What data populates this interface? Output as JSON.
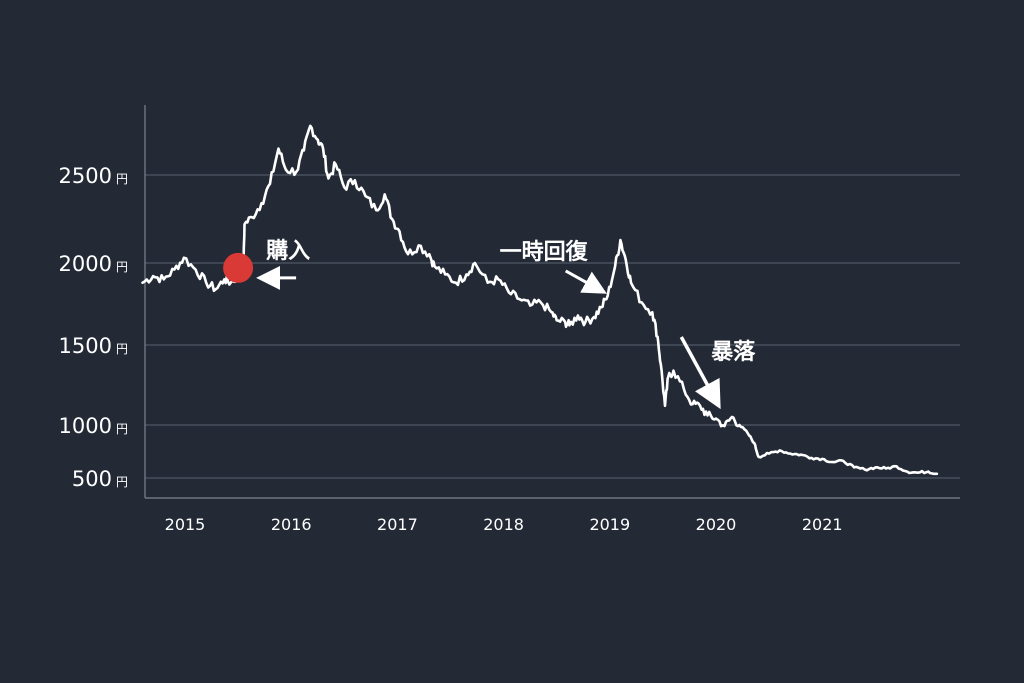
{
  "chart_data": {
    "type": "line",
    "title": "",
    "xlabel": "",
    "ylabel": "",
    "y_unit": "円",
    "xlim": [
      2014.55,
      2022.1
    ],
    "ylim": [
      380,
      2830
    ],
    "yticks": [
      500,
      1000,
      1500,
      2000,
      2500
    ],
    "ytick_labels": [
      "500",
      "1000",
      "1500",
      "2000",
      "2500"
    ],
    "xticks": [
      2015,
      2016,
      2017,
      2018,
      2019,
      2020,
      2021
    ],
    "xtick_labels": [
      "2015",
      "2016",
      "2017",
      "2018",
      "2019",
      "2020",
      "2021"
    ],
    "grid": true,
    "series": [
      {
        "name": "",
        "color": "#ffffff",
        "points": [
          [
            2014.6,
            1880
          ],
          [
            2014.7,
            1920
          ],
          [
            2014.8,
            1900
          ],
          [
            2014.9,
            1960
          ],
          [
            2014.99,
            2030
          ],
          [
            2015.1,
            1960
          ],
          [
            2015.2,
            1880
          ],
          [
            2015.29,
            1840
          ],
          [
            2015.37,
            1900
          ],
          [
            2015.43,
            1880
          ],
          [
            2015.5,
            1920
          ],
          [
            2015.55,
            1960
          ],
          [
            2015.56,
            2220
          ],
          [
            2015.63,
            2260
          ],
          [
            2015.72,
            2340
          ],
          [
            2015.8,
            2450
          ],
          [
            2015.88,
            2650
          ],
          [
            2015.95,
            2530
          ],
          [
            2016.05,
            2520
          ],
          [
            2016.12,
            2640
          ],
          [
            2016.18,
            2780
          ],
          [
            2016.25,
            2700
          ],
          [
            2016.3,
            2650
          ],
          [
            2016.35,
            2480
          ],
          [
            2016.42,
            2560
          ],
          [
            2016.5,
            2430
          ],
          [
            2016.6,
            2470
          ],
          [
            2016.7,
            2380
          ],
          [
            2016.8,
            2300
          ],
          [
            2016.88,
            2390
          ],
          [
            2016.95,
            2250
          ],
          [
            2017.02,
            2180
          ],
          [
            2017.1,
            2050
          ],
          [
            2017.2,
            2100
          ],
          [
            2017.3,
            2050
          ],
          [
            2017.35,
            1980
          ],
          [
            2017.45,
            1930
          ],
          [
            2017.55,
            1880
          ],
          [
            2017.65,
            1930
          ],
          [
            2017.73,
            2000
          ],
          [
            2017.85,
            1880
          ],
          [
            2017.95,
            1900
          ],
          [
            2018.05,
            1820
          ],
          [
            2018.15,
            1780
          ],
          [
            2018.25,
            1740
          ],
          [
            2018.35,
            1760
          ],
          [
            2018.45,
            1700
          ],
          [
            2018.5,
            1650
          ],
          [
            2018.58,
            1640
          ],
          [
            2018.62,
            1620
          ],
          [
            2018.7,
            1680
          ],
          [
            2018.77,
            1640
          ],
          [
            2018.85,
            1670
          ],
          [
            2018.92,
            1730
          ],
          [
            2018.98,
            1800
          ],
          [
            2019.05,
            1980
          ],
          [
            2019.1,
            2130
          ],
          [
            2019.15,
            2020
          ],
          [
            2019.2,
            1880
          ],
          [
            2019.3,
            1760
          ],
          [
            2019.4,
            1700
          ],
          [
            2019.45,
            1550
          ],
          [
            2019.48,
            1380
          ],
          [
            2019.52,
            1120
          ],
          [
            2019.55,
            1300
          ],
          [
            2019.6,
            1340
          ],
          [
            2019.7,
            1220
          ],
          [
            2019.78,
            1130
          ],
          [
            2019.85,
            1120
          ],
          [
            2019.92,
            1060
          ],
          [
            2020.0,
            1040
          ],
          [
            2020.08,
            990
          ],
          [
            2020.15,
            1050
          ],
          [
            2020.22,
            1000
          ],
          [
            2020.3,
            920
          ],
          [
            2020.36,
            830
          ],
          [
            2020.4,
            700
          ],
          [
            2020.5,
            730
          ],
          [
            2020.6,
            760
          ],
          [
            2020.7,
            730
          ],
          [
            2020.8,
            720
          ],
          [
            2020.9,
            690
          ],
          [
            2021.0,
            680
          ],
          [
            2021.1,
            650
          ],
          [
            2021.2,
            660
          ],
          [
            2021.3,
            600
          ],
          [
            2021.4,
            580
          ],
          [
            2021.5,
            600
          ],
          [
            2021.6,
            590
          ],
          [
            2021.7,
            610
          ],
          [
            2021.8,
            560
          ],
          [
            2021.9,
            550
          ],
          [
            2022.0,
            560
          ],
          [
            2022.08,
            540
          ]
        ]
      }
    ],
    "annotations": [
      {
        "text": "購入",
        "type": "marker",
        "x": 2015.5,
        "y": 1970,
        "marker_color": "#d93a35"
      },
      {
        "text": "一時回復",
        "type": "arrow",
        "x": 2018.98,
        "y": 1830
      },
      {
        "text": "暴落",
        "type": "arrow",
        "x": 2020.05,
        "y": 1300
      }
    ]
  }
}
